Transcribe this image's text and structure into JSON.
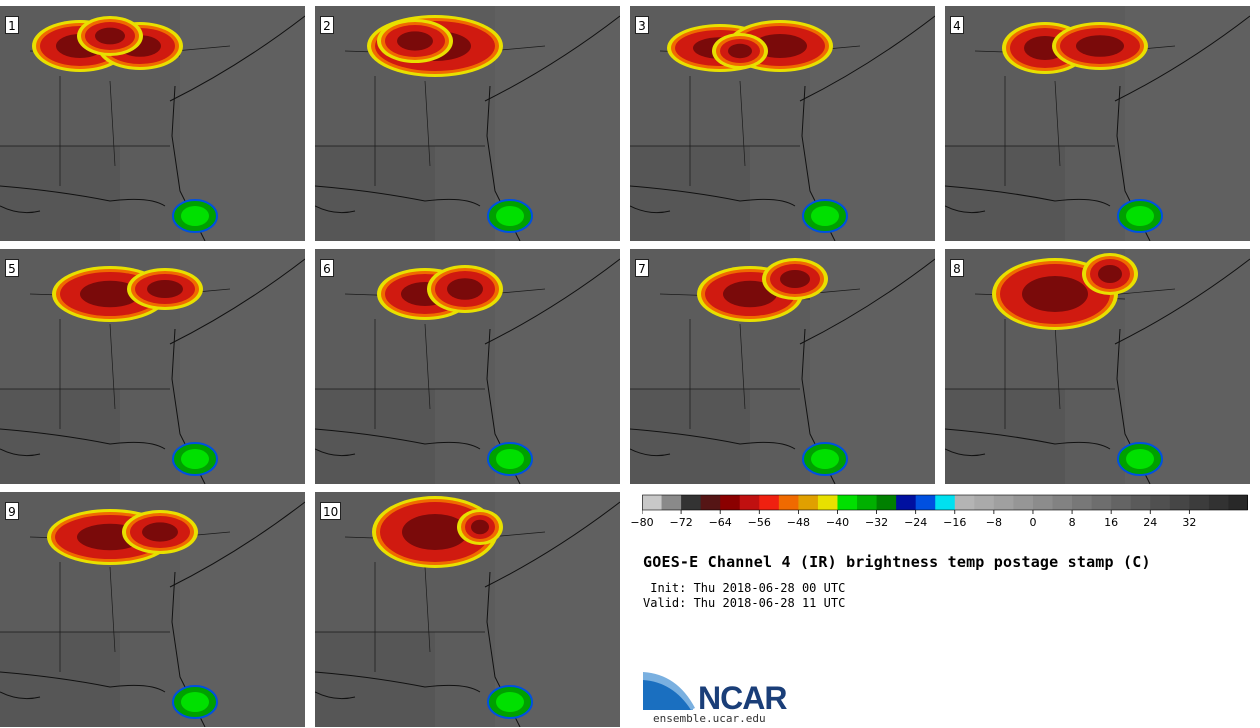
{
  "stamps": [
    {
      "label": "1"
    },
    {
      "label": "2"
    },
    {
      "label": "3"
    },
    {
      "label": "4"
    },
    {
      "label": "5"
    },
    {
      "label": "6"
    },
    {
      "label": "7"
    },
    {
      "label": "8"
    },
    {
      "label": "9"
    },
    {
      "label": "10"
    }
  ],
  "colorbar": {
    "colors": [
      "#c8c8c8",
      "#8a8a8a",
      "#333333",
      "#551515",
      "#8b0000",
      "#c01010",
      "#f02010",
      "#f06a00",
      "#e0a000",
      "#e8e000",
      "#00e000",
      "#00b000",
      "#008000",
      "#0010a0",
      "#0050e0",
      "#00e0f0",
      "#b4b4b4",
      "#aaaaaa",
      "#a0a0a0",
      "#969696",
      "#8c8c8c",
      "#828282",
      "#787878",
      "#6e6e6e",
      "#646464",
      "#5a5a5a",
      "#505050",
      "#464646",
      "#3c3c3c",
      "#323232",
      "#282828"
    ],
    "ticks": [
      "−80",
      "−72",
      "−64",
      "−56",
      "−48",
      "−40",
      "−32",
      "−24",
      "−16",
      "−8",
      "0",
      "8",
      "16",
      "24",
      "32"
    ]
  },
  "title": "GOES-E Channel 4 (IR) brightness temp postage stamp (C)",
  "init": " Init: Thu 2018-06-28 00 UTC",
  "valid": "Valid: Thu 2018-06-28 11 UTC",
  "logo": {
    "name": "NCAR",
    "url": "ensemble.ucar.edu"
  }
}
